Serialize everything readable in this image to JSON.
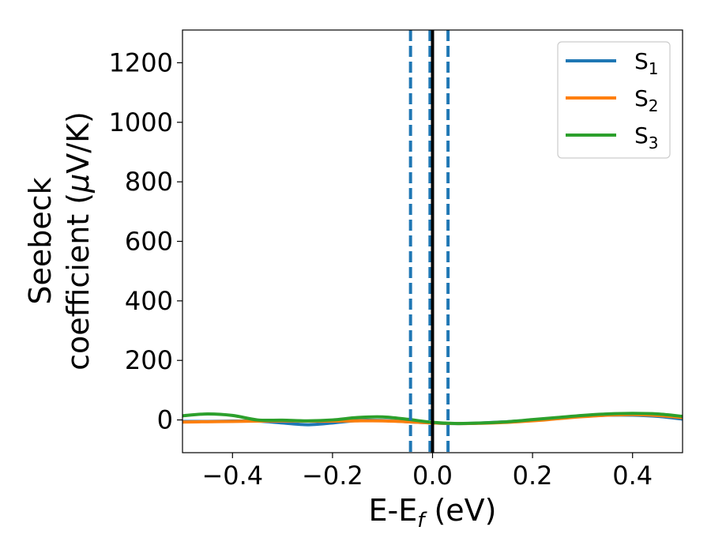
{
  "chart_data": {
    "type": "line",
    "xlabel": {
      "main": "E-E",
      "sub": "f",
      "unit": " (eV)"
    },
    "ylabel": {
      "line1": "Seebeck",
      "line2": "coefficient  (",
      "mu": "μ",
      "unit": "V/K)"
    },
    "xlim": [
      -0.5,
      0.5
    ],
    "ylim": [
      -110,
      1310
    ],
    "xticks": [
      -0.4,
      -0.2,
      0.0,
      0.2,
      0.4
    ],
    "xtick_labels": [
      "−0.4",
      "−0.2",
      "0.0",
      "0.2",
      "0.4"
    ],
    "yticks": [
      0,
      200,
      400,
      600,
      800,
      1000,
      1200
    ],
    "ytick_labels": [
      "0",
      "200",
      "400",
      "600",
      "800",
      "1000",
      "1200"
    ],
    "grid": false,
    "legend_position": "top-right",
    "vlines": [
      {
        "x": -0.044,
        "style": "dashed",
        "color": "#1f77b4"
      },
      {
        "x": -0.005,
        "style": "dashed",
        "color": "#1f77b4"
      },
      {
        "x": 0.031,
        "style": "dashed",
        "color": "#1f77b4"
      },
      {
        "x": 0.0,
        "style": "solid",
        "color": "#000000"
      }
    ],
    "series": [
      {
        "name": "S",
        "sub": "1",
        "color": "#1f77b4",
        "x": [
          -0.5,
          -0.45,
          -0.4,
          -0.35,
          -0.3,
          -0.25,
          -0.2,
          -0.15,
          -0.1,
          -0.05,
          0.0,
          0.05,
          0.1,
          0.15,
          0.2,
          0.25,
          0.3,
          0.35,
          0.4,
          0.45,
          0.5
        ],
        "y": [
          -5,
          -5,
          -4,
          -4,
          -10,
          -16,
          -10,
          -2,
          -2,
          -6,
          -10,
          -12,
          -10,
          -6,
          0,
          6,
          12,
          16,
          16,
          12,
          3
        ]
      },
      {
        "name": "S",
        "sub": "2",
        "color": "#ff7f0e",
        "x": [
          -0.5,
          -0.45,
          -0.4,
          -0.35,
          -0.3,
          -0.25,
          -0.2,
          -0.15,
          -0.1,
          -0.05,
          0.0,
          0.05,
          0.1,
          0.15,
          0.2,
          0.25,
          0.3,
          0.35,
          0.4,
          0.45,
          0.5
        ],
        "y": [
          -7,
          -6,
          -5,
          -4,
          -3,
          -4,
          -4,
          -3,
          -3,
          -6,
          -10,
          -12,
          -11,
          -8,
          -3,
          4,
          11,
          16,
          18,
          15,
          8
        ]
      },
      {
        "name": "S",
        "sub": "3",
        "color": "#2ca02c",
        "x": [
          -0.5,
          -0.45,
          -0.4,
          -0.35,
          -0.3,
          -0.25,
          -0.2,
          -0.15,
          -0.1,
          -0.05,
          0.0,
          0.05,
          0.1,
          0.15,
          0.2,
          0.25,
          0.3,
          0.35,
          0.4,
          0.45,
          0.5
        ],
        "y": [
          14,
          20,
          15,
          0,
          -1,
          -3,
          0,
          8,
          10,
          2,
          -8,
          -12,
          -10,
          -6,
          1,
          8,
          15,
          20,
          22,
          20,
          12
        ]
      }
    ]
  }
}
